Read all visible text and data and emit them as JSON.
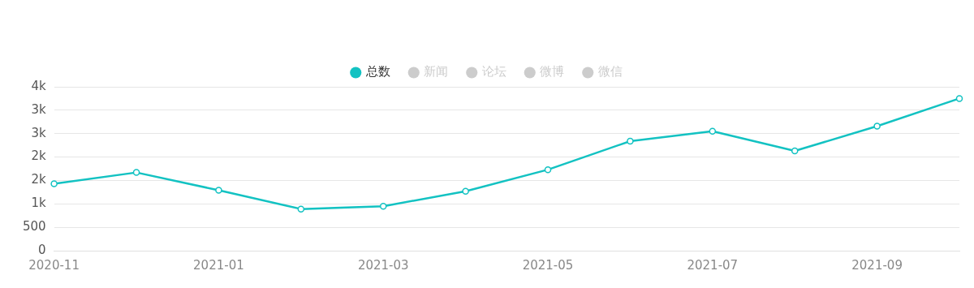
{
  "chart_data": {
    "type": "line",
    "categories": [
      "2020-11",
      null,
      "2021-01",
      null,
      "2021-03",
      null,
      "2021-05",
      null,
      "2021-07",
      null,
      "2021-09",
      null
    ],
    "series": [
      {
        "name": "总数",
        "color": "#13c2c2",
        "values": [
          1430,
          1670,
          1290,
          890,
          950,
          1270,
          1730,
          2340,
          2550,
          2130,
          2660,
          3250
        ]
      },
      {
        "name": "新闻",
        "color": "#cccccc",
        "values": [
          null,
          null,
          null,
          null,
          null,
          null,
          null,
          null,
          null,
          null,
          null,
          null
        ]
      },
      {
        "name": "论坛",
        "color": "#cccccc",
        "values": [
          null,
          null,
          null,
          null,
          null,
          null,
          null,
          null,
          null,
          null,
          null,
          null
        ]
      },
      {
        "name": "微博",
        "color": "#cccccc",
        "values": [
          null,
          null,
          null,
          null,
          null,
          null,
          null,
          null,
          null,
          null,
          null,
          null
        ]
      },
      {
        "name": "微信",
        "color": "#cccccc",
        "values": [
          null,
          null,
          null,
          null,
          null,
          null,
          null,
          null,
          null,
          null,
          null,
          null
        ]
      }
    ],
    "ylim": [
      0,
      3500
    ],
    "yticks": [
      0,
      500,
      {
        "value": 1000,
        "label": "1k"
      },
      {
        "value": 1500,
        "label": "2k"
      },
      {
        "value": 2000,
        "label": "2k"
      },
      {
        "value": 2500,
        "label": "3k"
      },
      {
        "value": 3000,
        "label": "3k"
      },
      {
        "value": 3500,
        "label": "4k"
      }
    ],
    "grid": "y",
    "legend": "top",
    "marker": "circle",
    "line_style": "solid"
  }
}
